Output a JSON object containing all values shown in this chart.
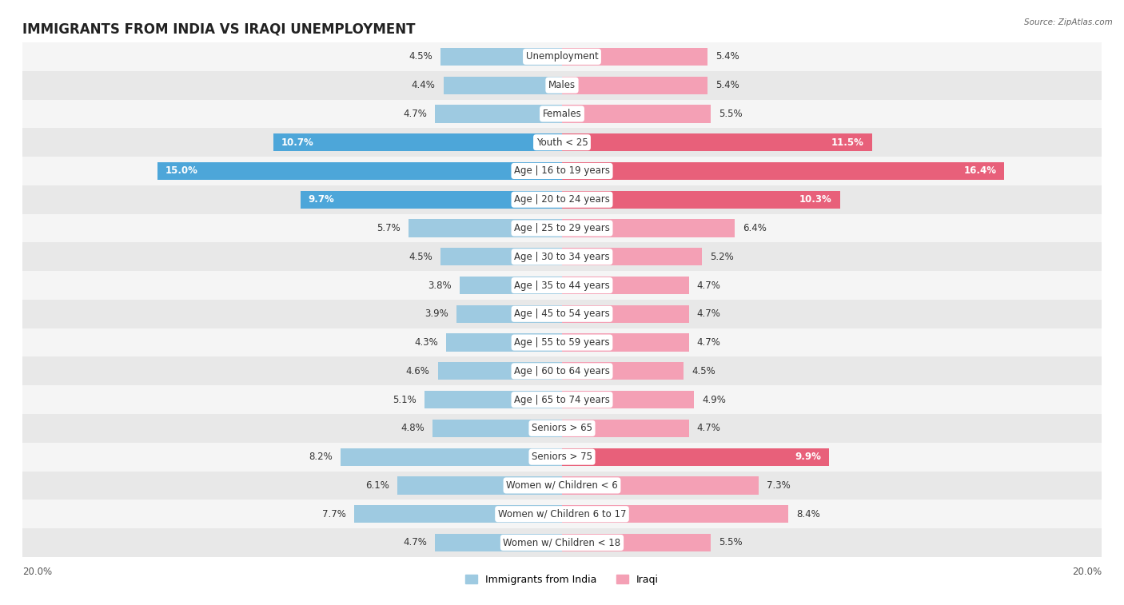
{
  "title": "IMMIGRANTS FROM INDIA VS IRAQI UNEMPLOYMENT",
  "source": "Source: ZipAtlas.com",
  "categories": [
    "Unemployment",
    "Males",
    "Females",
    "Youth < 25",
    "Age | 16 to 19 years",
    "Age | 20 to 24 years",
    "Age | 25 to 29 years",
    "Age | 30 to 34 years",
    "Age | 35 to 44 years",
    "Age | 45 to 54 years",
    "Age | 55 to 59 years",
    "Age | 60 to 64 years",
    "Age | 65 to 74 years",
    "Seniors > 65",
    "Seniors > 75",
    "Women w/ Children < 6",
    "Women w/ Children 6 to 17",
    "Women w/ Children < 18"
  ],
  "india_values": [
    4.5,
    4.4,
    4.7,
    10.7,
    15.0,
    9.7,
    5.7,
    4.5,
    3.8,
    3.9,
    4.3,
    4.6,
    5.1,
    4.8,
    8.2,
    6.1,
    7.7,
    4.7
  ],
  "iraqi_values": [
    5.4,
    5.4,
    5.5,
    11.5,
    16.4,
    10.3,
    6.4,
    5.2,
    4.7,
    4.7,
    4.7,
    4.5,
    4.9,
    4.7,
    9.9,
    7.3,
    8.4,
    5.5
  ],
  "india_color": "#9ecae1",
  "iraqi_color": "#f4a0b5",
  "india_highlight_color": "#4da6d9",
  "iraqi_highlight_color": "#e8607a",
  "bar_height": 0.62,
  "max_val": 20.0,
  "row_color_light": "#f5f5f5",
  "row_color_dark": "#e8e8e8",
  "title_fontsize": 12,
  "label_fontsize": 8.5,
  "value_fontsize": 8.5,
  "legend_india": "Immigrants from India",
  "legend_iraqi": "Iraqi"
}
